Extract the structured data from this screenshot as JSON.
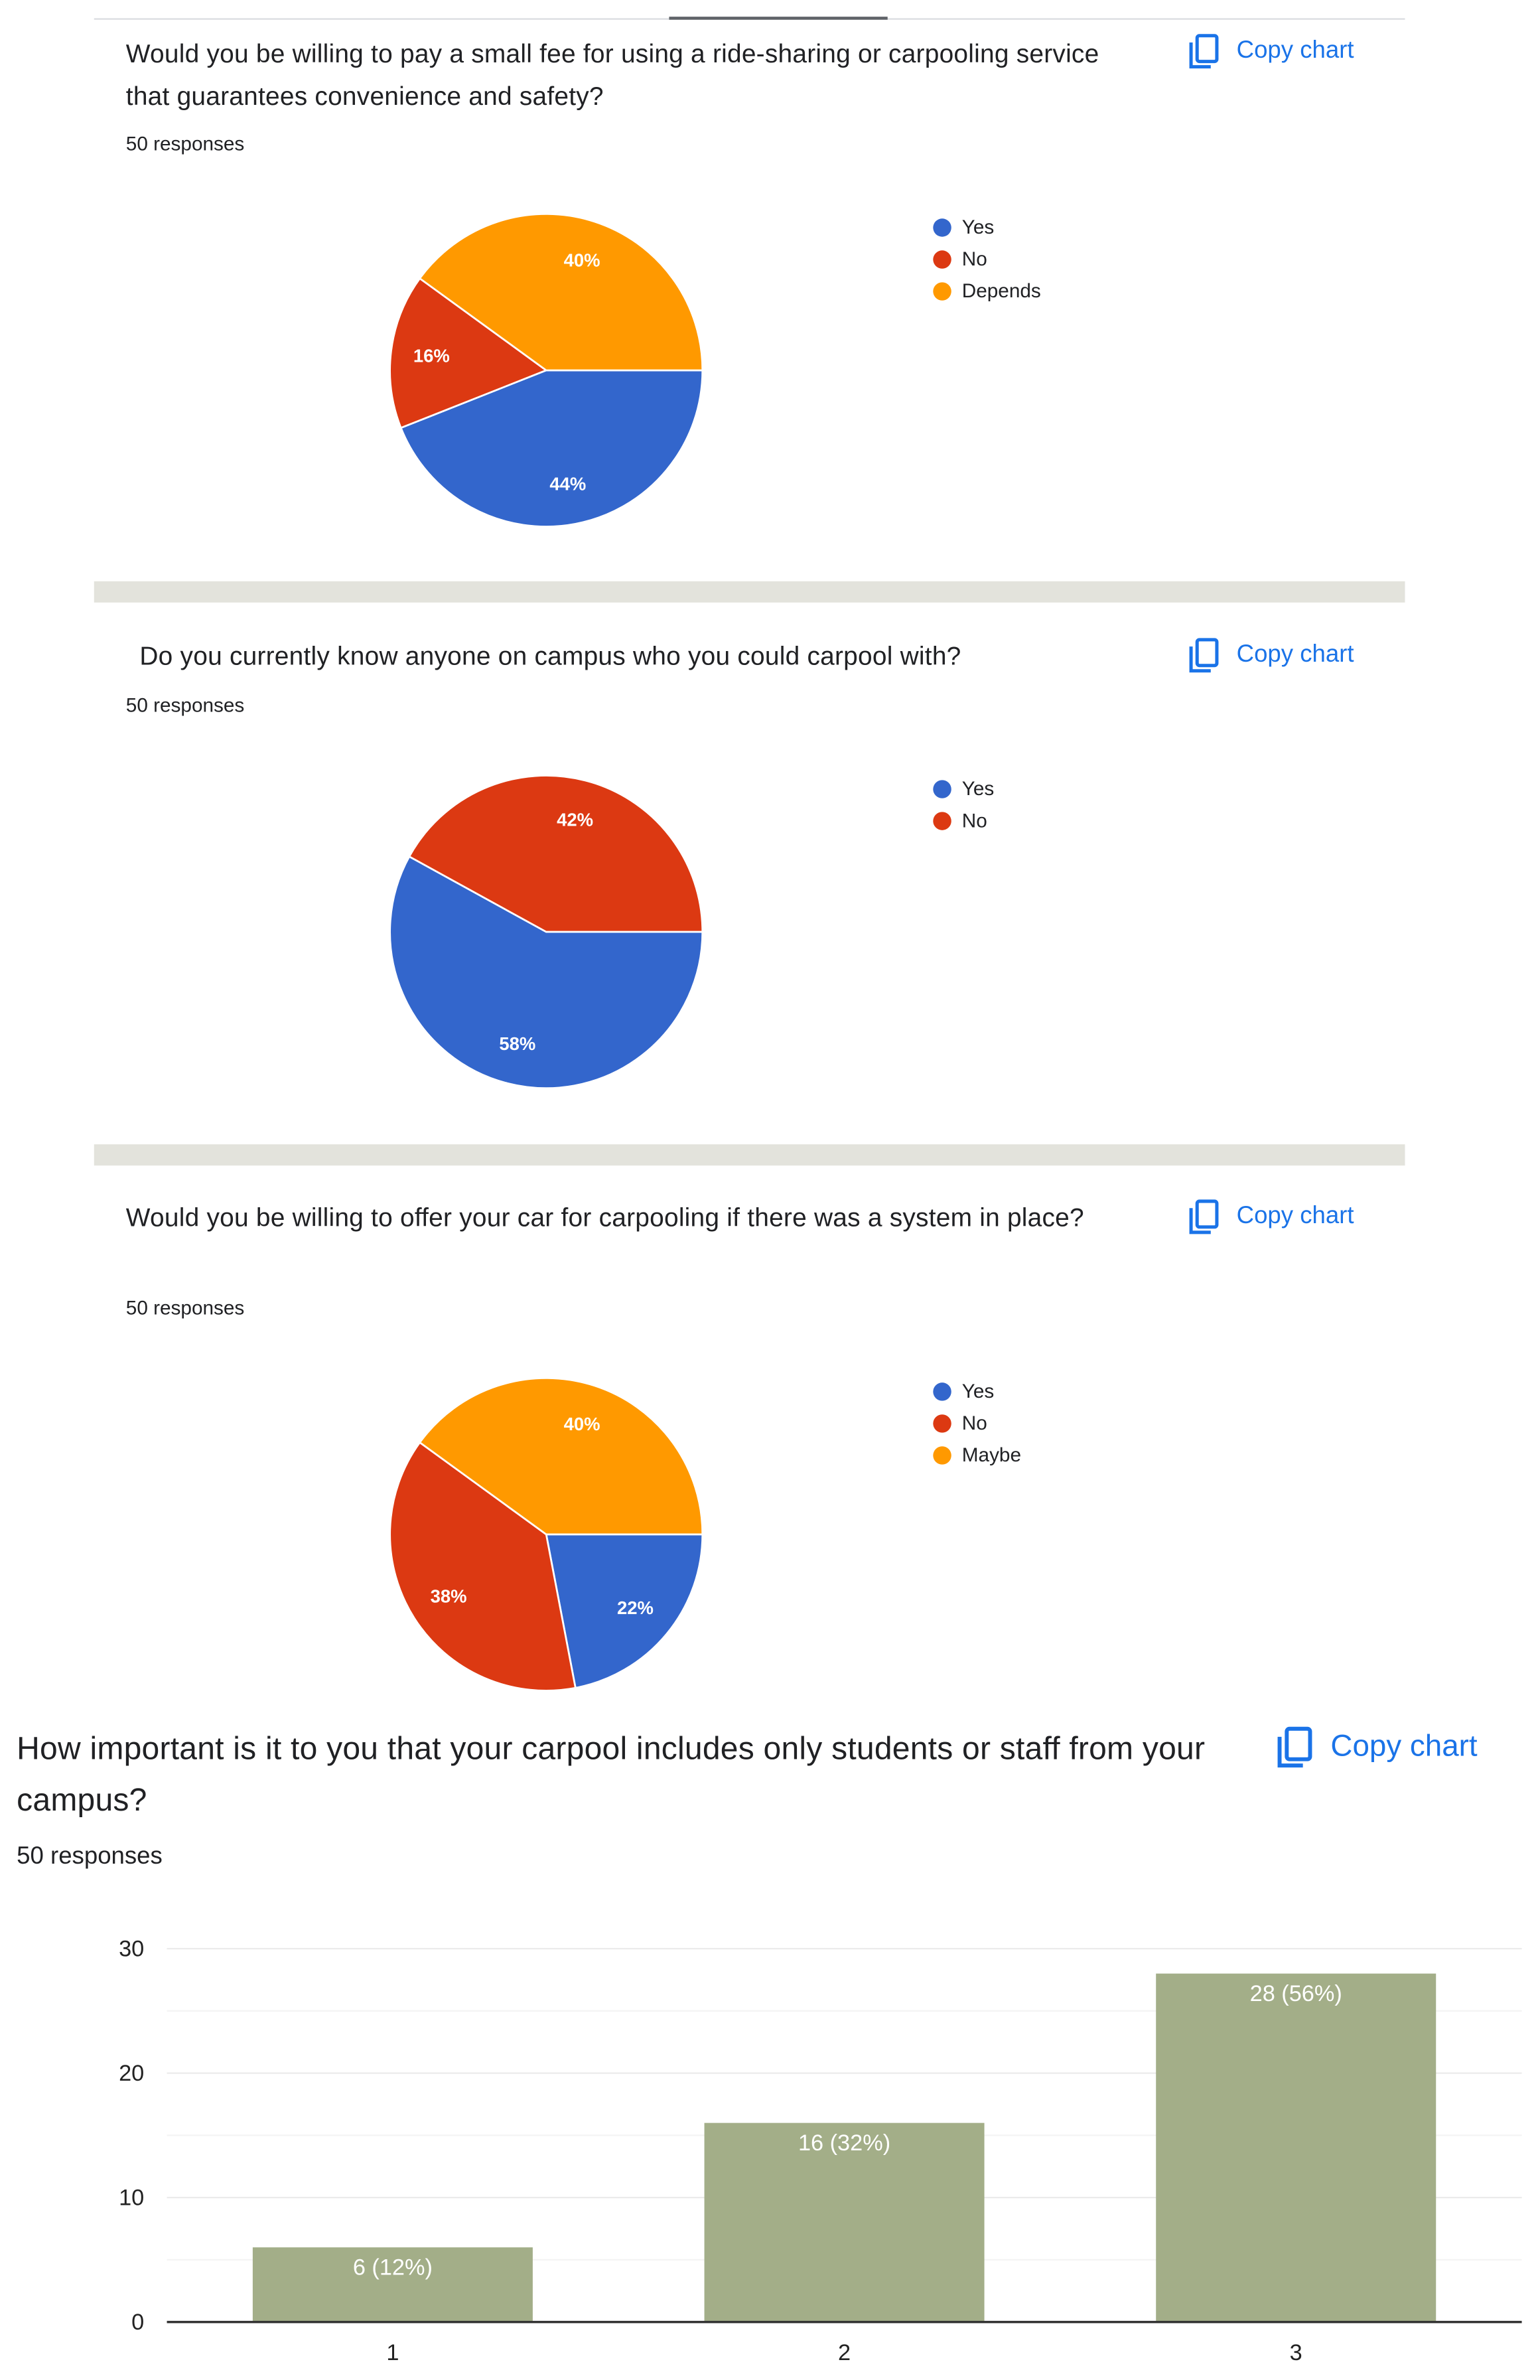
{
  "copy_chart_label": "Copy chart",
  "colors": {
    "blue": "#3366cc",
    "red": "#dc3912",
    "orange": "#ff9900",
    "bar": "#a3ae88",
    "link": "#1a73e8"
  },
  "chart_data": [
    {
      "type": "pie",
      "title": "Would you be willing to pay a small fee for using a ride-sharing or carpooling service that guarantees convenience and safety?",
      "subtitle": "50 responses",
      "legend_position": "right",
      "slices": [
        {
          "label": "Yes",
          "value": 44,
          "display": "44%",
          "color": "#3366cc"
        },
        {
          "label": "No",
          "value": 16,
          "display": "16%",
          "color": "#dc3912"
        },
        {
          "label": "Depends",
          "value": 40,
          "display": "40%",
          "color": "#ff9900"
        }
      ]
    },
    {
      "type": "pie",
      "title": "Do you currently know anyone on campus who you could carpool with?",
      "subtitle": "50 responses",
      "legend_position": "right",
      "slices": [
        {
          "label": "Yes",
          "value": 58,
          "display": "58%",
          "color": "#3366cc"
        },
        {
          "label": "No",
          "value": 42,
          "display": "42%",
          "color": "#dc3912"
        }
      ]
    },
    {
      "type": "pie",
      "title": "Would you be willing to offer your car for carpooling if there was a system in place?",
      "subtitle": "50 responses",
      "legend_position": "right",
      "slices": [
        {
          "label": "Yes",
          "value": 22,
          "display": "22%",
          "color": "#3366cc"
        },
        {
          "label": "No",
          "value": 38,
          "display": "38%",
          "color": "#dc3912"
        },
        {
          "label": "Maybe",
          "value": 40,
          "display": "40%",
          "color": "#ff9900"
        }
      ]
    },
    {
      "type": "bar",
      "title": "How important is it to you that your carpool includes only students or staff from your campus?",
      "subtitle": "50 responses",
      "categories": [
        "1",
        "2",
        "3"
      ],
      "values": [
        6,
        16,
        28
      ],
      "data_labels": [
        "6 (12%)",
        "16 (32%)",
        "28 (56%)"
      ],
      "yticks": [
        "0",
        "10",
        "20",
        "30"
      ],
      "ylim": [
        0,
        30
      ],
      "grid": true,
      "color": "#a3ae88"
    }
  ]
}
